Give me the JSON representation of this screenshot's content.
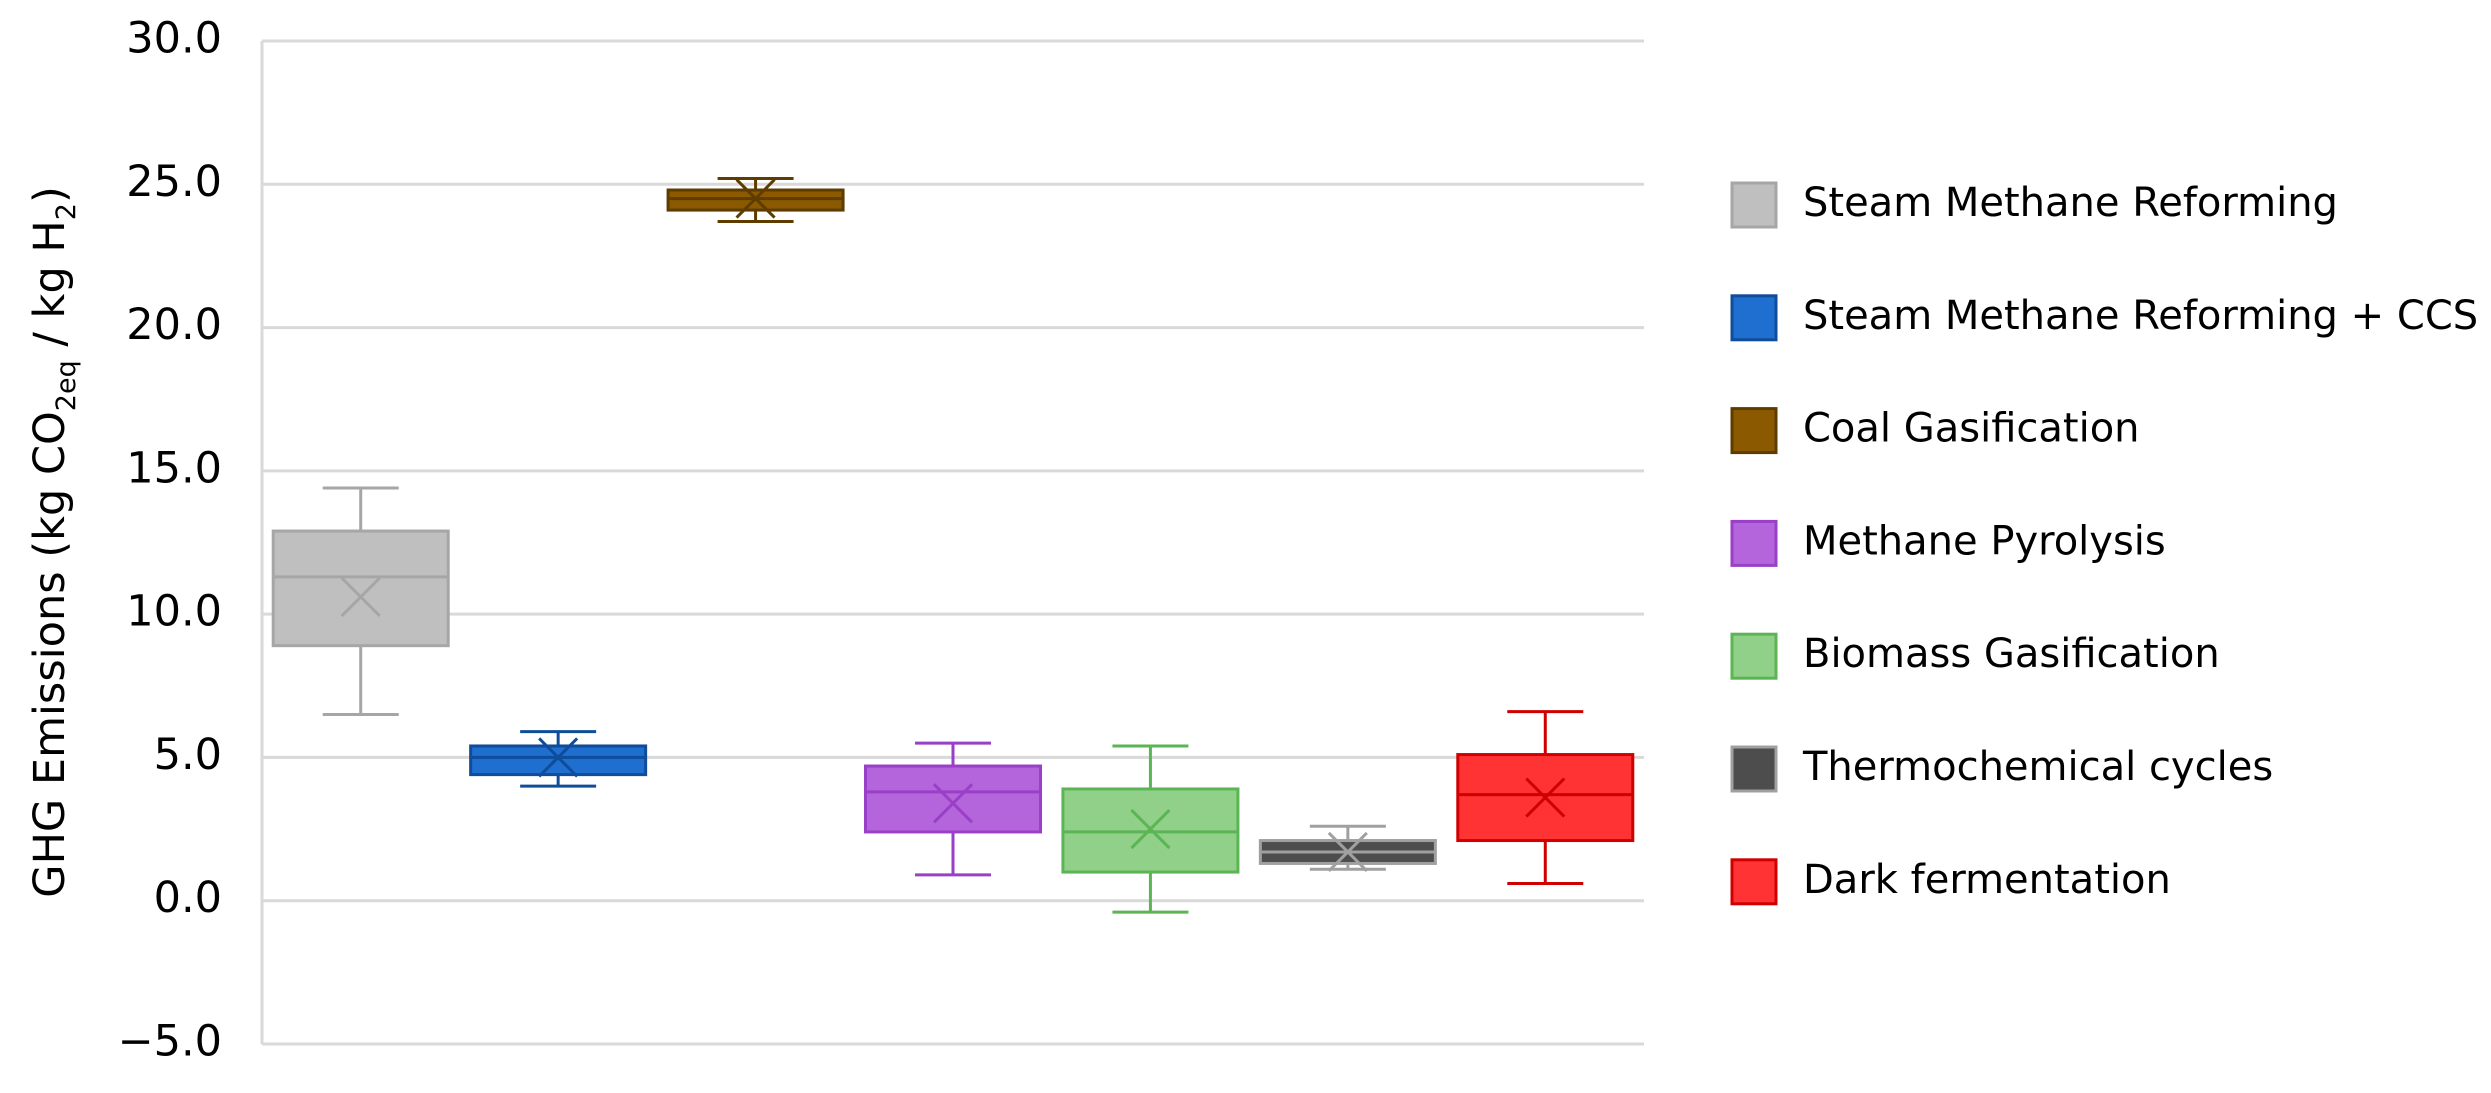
{
  "chart_data": {
    "type": "box",
    "ylabel": [
      "GHG Emissions (kg CO",
      "2eq",
      " / kg H",
      "2",
      ")"
    ],
    "ylim": [
      -5,
      30
    ],
    "yticks": [
      {
        "value": -5,
        "label": "−5.0"
      },
      {
        "value": 0,
        "label": "0.0"
      },
      {
        "value": 5,
        "label": "5.0"
      },
      {
        "value": 10,
        "label": "10.0"
      },
      {
        "value": 15,
        "label": "15.0"
      },
      {
        "value": 20,
        "label": "20.0"
      },
      {
        "value": 25,
        "label": "25.0"
      },
      {
        "value": 30,
        "label": "30.0"
      }
    ],
    "grid": true,
    "legend": "right",
    "series": [
      {
        "name": "Steam Methane Reforming",
        "color": "#bfbfbf",
        "edge": "#a6a6a6",
        "whisker_low": 6.5,
        "q1": 8.9,
        "median": 11.3,
        "q3": 12.9,
        "whisker_high": 14.4,
        "mean": 10.6
      },
      {
        "name": "Steam Methane Reforming + CCS",
        "color": "#1f6fd0",
        "edge": "#0f4c9a",
        "whisker_low": 4.0,
        "q1": 4.4,
        "median": 5.0,
        "q3": 5.4,
        "whisker_high": 5.9,
        "mean": 5.0
      },
      {
        "name": "Coal Gasification",
        "color": "#8b5a00",
        "edge": "#5e3c00",
        "whisker_low": 23.7,
        "q1": 24.1,
        "median": 24.5,
        "q3": 24.8,
        "whisker_high": 25.2,
        "mean": 24.5
      },
      {
        "name": "Methane Pyrolysis",
        "color": "#b565db",
        "edge": "#9a3fc7",
        "whisker_low": 0.9,
        "q1": 2.4,
        "median": 3.8,
        "q3": 4.7,
        "whisker_high": 5.5,
        "mean": 3.4
      },
      {
        "name": "Biomass Gasification",
        "color": "#90d088",
        "edge": "#5cb555",
        "whisker_low": -0.4,
        "q1": 1.0,
        "median": 2.4,
        "q3": 3.9,
        "whisker_high": 5.4,
        "mean": 2.5
      },
      {
        "name": "Thermochemical cycles",
        "color": "#4d4d4d",
        "edge": "#a0a0a0",
        "whisker_low": 1.1,
        "q1": 1.3,
        "median": 1.7,
        "q3": 2.1,
        "whisker_high": 2.6,
        "mean": 1.7
      },
      {
        "name": "Dark fermentation",
        "color": "#ff3333",
        "edge": "#d00000",
        "whisker_low": 0.6,
        "q1": 2.1,
        "median": 3.7,
        "q3": 5.1,
        "whisker_high": 6.6,
        "mean": 3.6
      }
    ]
  }
}
